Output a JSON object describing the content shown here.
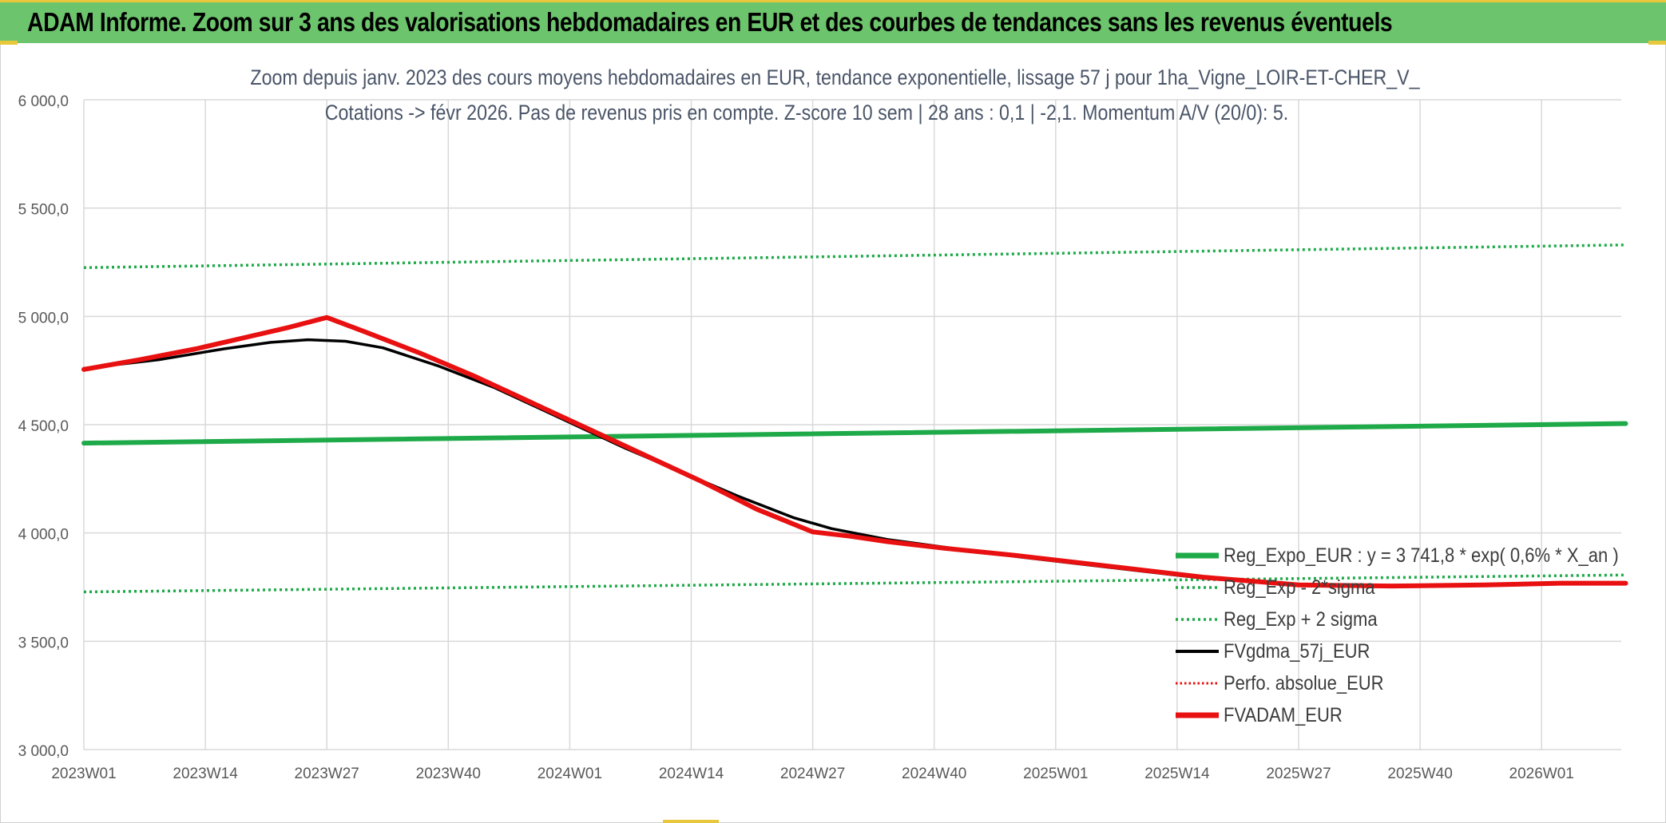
{
  "banner": {
    "title": "ADAM Informe. Zoom sur 3 ans des valorisations hebdomadaires en EUR et des courbes de tendances sans les revenus éventuels"
  },
  "colors": {
    "banner_bg": "#6cc46c",
    "accent_yellow": "#e8c83a",
    "reg_green": "#1faa4a",
    "fvgdma_black": "#000000",
    "fvadam_red": "#e81010"
  },
  "chart_data": {
    "type": "line",
    "title_line1": "Zoom depuis janv. 2023 des cours moyens hebdomadaires en EUR, tendance exponentielle, lissage 57 j pour 1ha_Vigne_LOIR-ET-CHER_V_",
    "title_line2": "Cotations -> févr 2026. Pas de revenus pris en compte. Z-score 10 sem | 28 ans : 0,1 | -2,1. Momentum A/V (20/0): 5.",
    "y_axis": {
      "min": 3000,
      "max": 6000,
      "ticks": [
        3000,
        3500,
        4000,
        4500,
        5000,
        5500,
        6000
      ],
      "tick_labels": [
        "3 000,0",
        "3 500,0",
        "4 000,0",
        "4 500,0",
        "5 000,0",
        "5 500,0",
        "6 000,0"
      ]
    },
    "x_axis": {
      "min_week": 0,
      "max_week": 165,
      "tick_weeks": [
        0,
        13,
        26,
        39,
        52,
        65,
        78,
        91,
        104,
        117,
        130,
        143,
        156
      ],
      "tick_labels": [
        "2023W01",
        "2023W14",
        "2023W27",
        "2023W40",
        "2024W01",
        "2024W14",
        "2024W27",
        "2024W40",
        "2025W01",
        "2025W14",
        "2025W27",
        "2025W40",
        "2026W01"
      ]
    },
    "grid": true,
    "legend_position": "bottom-right",
    "series": [
      {
        "name": "Reg_Expo_EUR : y = 3 741,8 * exp( 0,6% *  X_an )",
        "style": "solid-thick",
        "color": "#1faa4a",
        "points": [
          [
            0,
            4415
          ],
          [
            165,
            4505
          ]
        ]
      },
      {
        "name": "Reg_Exp - 2*sigma",
        "style": "dotted",
        "color": "#1faa4a",
        "points": [
          [
            0,
            3728
          ],
          [
            165,
            3806
          ]
        ]
      },
      {
        "name": "Reg_Exp + 2 sigma",
        "style": "dotted",
        "color": "#1faa4a",
        "points": [
          [
            0,
            5225
          ],
          [
            165,
            5330
          ]
        ]
      },
      {
        "name": "FVgdma_57j_EUR",
        "style": "solid",
        "color": "#000000",
        "points": [
          [
            0,
            4760
          ],
          [
            8,
            4800
          ],
          [
            15,
            4850
          ],
          [
            20,
            4880
          ],
          [
            24,
            4892
          ],
          [
            28,
            4885
          ],
          [
            32,
            4855
          ],
          [
            38,
            4770
          ],
          [
            44,
            4670
          ],
          [
            50,
            4550
          ],
          [
            54,
            4470
          ],
          [
            58,
            4390
          ],
          [
            64,
            4280
          ],
          [
            70,
            4170
          ],
          [
            76,
            4070
          ],
          [
            80,
            4020
          ],
          [
            86,
            3970
          ],
          [
            92,
            3935
          ],
          [
            100,
            3890
          ],
          [
            110,
            3840
          ],
          [
            120,
            3790
          ],
          [
            130,
            3760
          ],
          [
            140,
            3755
          ],
          [
            150,
            3760
          ],
          [
            158,
            3765
          ],
          [
            165,
            3765
          ]
        ]
      },
      {
        "name": "Perfo. absolue_EUR",
        "style": "dotted",
        "color": "#e81010",
        "points": []
      },
      {
        "name": "FVADAM_EUR",
        "style": "solid-thick",
        "color": "#e81010",
        "points": [
          [
            0,
            4755
          ],
          [
            6,
            4800
          ],
          [
            12,
            4850
          ],
          [
            17,
            4900
          ],
          [
            22,
            4950
          ],
          [
            26,
            4995
          ],
          [
            30,
            4930
          ],
          [
            36,
            4830
          ],
          [
            42,
            4720
          ],
          [
            48,
            4600
          ],
          [
            54,
            4480
          ],
          [
            60,
            4360
          ],
          [
            66,
            4240
          ],
          [
            72,
            4110
          ],
          [
            78,
            4005
          ],
          [
            82,
            3985
          ],
          [
            86,
            3960
          ],
          [
            92,
            3930
          ],
          [
            100,
            3895
          ],
          [
            110,
            3845
          ],
          [
            120,
            3795
          ],
          [
            130,
            3760
          ],
          [
            140,
            3755
          ],
          [
            150,
            3760
          ],
          [
            158,
            3768
          ],
          [
            165,
            3768
          ]
        ]
      }
    ]
  }
}
